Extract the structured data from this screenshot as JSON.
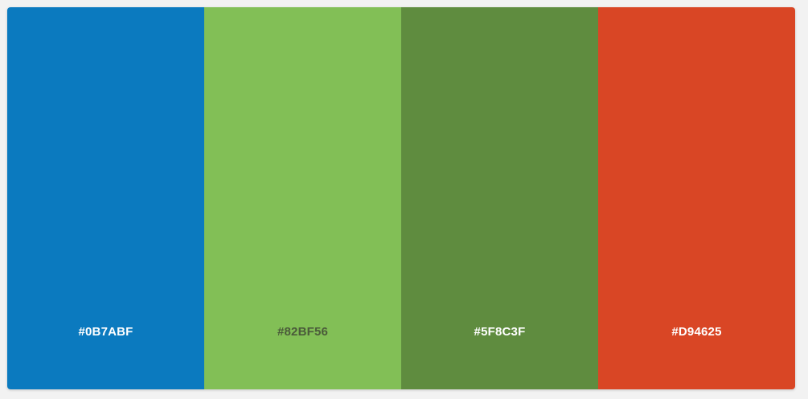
{
  "palette": {
    "swatches": [
      {
        "hex": "#0B7ABF",
        "color": "#0B7ABF",
        "label_color": "#FFFFFF"
      },
      {
        "hex": "#82BF56",
        "color": "#82BF56",
        "label_color": "#4a5a3a"
      },
      {
        "hex": "#5F8C3F",
        "color": "#5F8C3F",
        "label_color": "#FFFFFF"
      },
      {
        "hex": "#D94625",
        "color": "#D94625",
        "label_color": "#FFFFFF"
      }
    ]
  }
}
